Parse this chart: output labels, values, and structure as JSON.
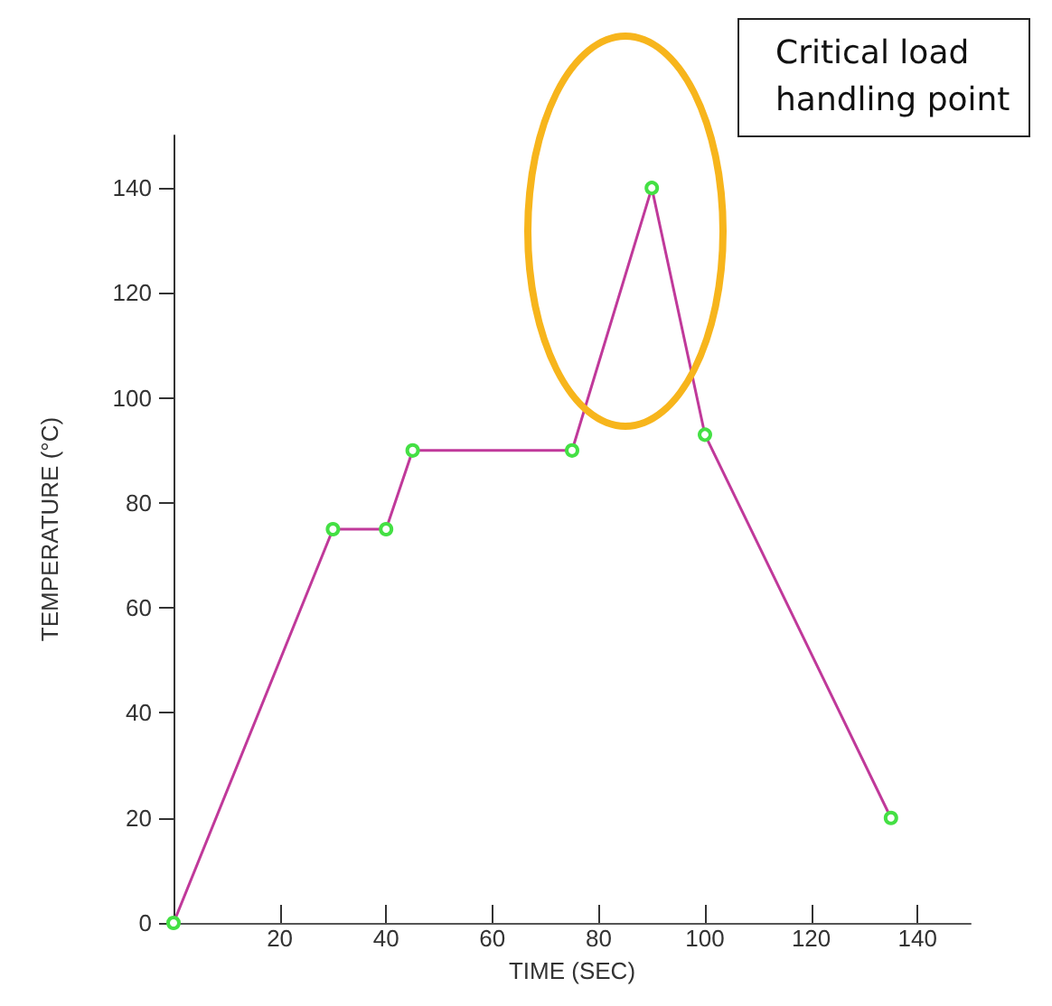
{
  "chart_data": {
    "type": "line",
    "xlabel": "TIME (SEC)",
    "ylabel": "TEMPERATURE (°C)",
    "x": [
      0,
      30,
      40,
      45,
      75,
      90,
      100,
      135
    ],
    "series": [
      {
        "color": "#c0399a",
        "values": [
          0,
          75,
          75,
          90,
          90,
          140,
          93,
          20
        ]
      }
    ],
    "xlim": [
      0,
      150
    ],
    "xticks": [
      20,
      40,
      60,
      80,
      100,
      120,
      140
    ],
    "ylim": [
      0,
      150
    ],
    "yticks": [
      0,
      20,
      40,
      60,
      80,
      100,
      120,
      140
    ],
    "grid": false,
    "marker": "circle",
    "line_style": "solid",
    "annotations": [
      "Critical load handling point"
    ]
  }
}
